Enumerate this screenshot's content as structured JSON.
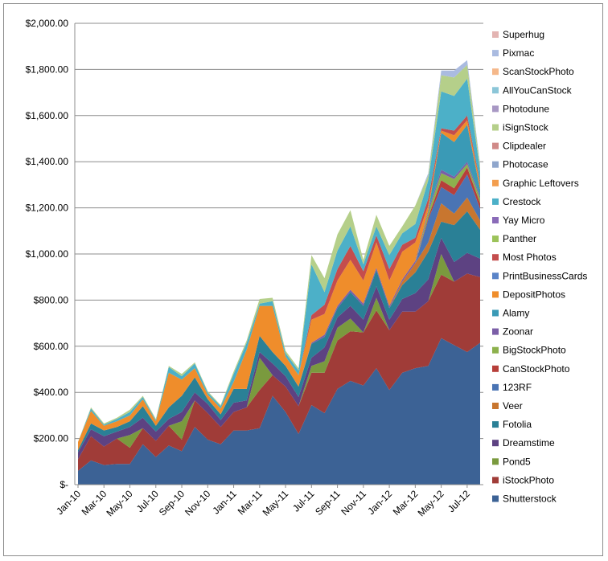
{
  "chart_data": {
    "type": "area",
    "stacked": true,
    "x": [
      "Jan-10",
      "Feb-10",
      "Mar-10",
      "Apr-10",
      "May-10",
      "Jun-10",
      "Jul-10",
      "Aug-10",
      "Sep-10",
      "Oct-10",
      "Nov-10",
      "Dec-10",
      "Jan-11",
      "Feb-11",
      "Mar-11",
      "Apr-11",
      "May-11",
      "Jun-11",
      "Jul-11",
      "Aug-11",
      "Sep-11",
      "Oct-11",
      "Nov-11",
      "Dec-11",
      "Jan-12",
      "Feb-12",
      "Mar-12",
      "Apr-12",
      "May-12",
      "Jun-12",
      "Jul-12",
      "Aug-12"
    ],
    "xtick_labels": [
      "Jan-10",
      "Mar-10",
      "May-10",
      "Jul-10",
      "Sep-10",
      "Nov-10",
      "Jan-11",
      "Mar-11",
      "May-11",
      "Jul-11",
      "Sep-11",
      "Nov-11",
      "Jan-12",
      "Mar-12",
      "May-12",
      "Jul-12"
    ],
    "ytick_labels": [
      "$-",
      "$200.00",
      "$400.00",
      "$600.00",
      "$800.00",
      "$1,000.00",
      "$1,200.00",
      "$1,400.00",
      "$1,600.00",
      "$1,800.00",
      "$2,000.00"
    ],
    "ylim": [
      0,
      2000
    ],
    "grid": "horizontal",
    "legend_position": "right",
    "series": [
      {
        "name": "Shutterstock",
        "color": "#3c6295",
        "values": [
          60,
          105,
          85,
          90,
          90,
          175,
          120,
          170,
          145,
          250,
          195,
          175,
          235,
          235,
          245,
          385,
          315,
          220,
          345,
          310,
          415,
          450,
          430,
          505,
          410,
          485,
          505,
          515,
          635,
          605,
          575,
          615
        ]
      },
      {
        "name": "iStockPhoto",
        "color": "#a03c38",
        "values": [
          50,
          105,
          80,
          110,
          70,
          70,
          70,
          85,
          50,
          115,
          115,
          75,
          80,
          100,
          165,
          90,
          110,
          120,
          140,
          175,
          210,
          215,
          230,
          250,
          260,
          265,
          245,
          280,
          275,
          275,
          340,
          285
        ]
      },
      {
        "name": "Pond5",
        "color": "#7a9a3e",
        "values": [
          0,
          0,
          0,
          0,
          55,
          0,
          0,
          0,
          80,
          0,
          0,
          0,
          0,
          0,
          140,
          0,
          0,
          0,
          30,
          50,
          55,
          55,
          0,
          55,
          0,
          0,
          0,
          0,
          90,
          0,
          0,
          0
        ]
      },
      {
        "name": "Dreamstime",
        "color": "#5d4282",
        "values": [
          30,
          30,
          45,
          30,
          35,
          45,
          40,
          30,
          40,
          35,
          40,
          30,
          40,
          30,
          25,
          50,
          45,
          40,
          35,
          60,
          45,
          55,
          55,
          50,
          45,
          55,
          80,
          95,
          70,
          85,
          90,
          80
        ]
      },
      {
        "name": "Fotolia",
        "color": "#2a8096",
        "values": [
          10,
          25,
          25,
          20,
          25,
          50,
          25,
          50,
          70,
          65,
          20,
          25,
          60,
          50,
          70,
          50,
          45,
          45,
          60,
          45,
          40,
          60,
          60,
          70,
          50,
          60,
          90,
          120,
          70,
          160,
          180,
          125
        ]
      },
      {
        "name": "Veer",
        "color": "#c8762f",
        "values": [
          0,
          0,
          0,
          0,
          0,
          0,
          0,
          0,
          0,
          0,
          0,
          0,
          0,
          0,
          0,
          0,
          0,
          0,
          0,
          0,
          0,
          0,
          0,
          0,
          0,
          15,
          40,
          40,
          80,
          50,
          60,
          40
        ]
      },
      {
        "name": "123RF",
        "color": "#4a74b4",
        "values": [
          0,
          0,
          0,
          0,
          0,
          0,
          0,
          0,
          0,
          0,
          0,
          0,
          0,
          0,
          0,
          0,
          0,
          0,
          0,
          0,
          0,
          0,
          0,
          0,
          0,
          0,
          0,
          100,
          70,
          80,
          100,
          50
        ]
      },
      {
        "name": "CanStockPhoto",
        "color": "#b73f3a",
        "values": [
          0,
          0,
          0,
          0,
          0,
          0,
          0,
          0,
          0,
          0,
          0,
          0,
          0,
          0,
          0,
          0,
          0,
          0,
          0,
          0,
          0,
          0,
          0,
          0,
          0,
          0,
          0,
          10,
          30,
          30,
          30,
          25
        ]
      },
      {
        "name": "BigStockPhoto",
        "color": "#8db14d",
        "values": [
          0,
          0,
          0,
          0,
          0,
          0,
          0,
          0,
          0,
          0,
          0,
          0,
          0,
          0,
          0,
          0,
          0,
          0,
          0,
          0,
          0,
          0,
          0,
          0,
          0,
          0,
          0,
          20,
          30,
          40,
          15,
          20
        ]
      },
      {
        "name": "Zoonar",
        "color": "#7b5ea7",
        "values": [
          0,
          0,
          0,
          0,
          0,
          0,
          0,
          0,
          0,
          0,
          0,
          0,
          0,
          0,
          0,
          0,
          0,
          0,
          5,
          10,
          10,
          10,
          10,
          10,
          10,
          10,
          10,
          10,
          15,
          10,
          10,
          10
        ]
      },
      {
        "name": "Alamy",
        "color": "#3a9ab6",
        "values": [
          0,
          0,
          0,
          0,
          0,
          0,
          0,
          0,
          0,
          0,
          0,
          0,
          0,
          0,
          0,
          0,
          0,
          0,
          0,
          0,
          0,
          0,
          0,
          0,
          0,
          0,
          0,
          0,
          160,
          150,
          160,
          30
        ]
      },
      {
        "name": "DepositPhotos",
        "color": "#ef8d2b",
        "values": [
          35,
          55,
          20,
          25,
          25,
          30,
          20,
          150,
          70,
          40,
          20,
          25,
          30,
          170,
          130,
          200,
          40,
          50,
          100,
          90,
          110,
          130,
          100,
          110,
          110,
          120,
          80,
          20,
          10,
          30,
          20,
          20
        ]
      },
      {
        "name": "PrintBusinessCards",
        "color": "#5a84c8",
        "values": [
          0,
          0,
          0,
          0,
          0,
          0,
          0,
          0,
          0,
          0,
          0,
          0,
          0,
          0,
          0,
          0,
          0,
          0,
          0,
          0,
          0,
          0,
          0,
          0,
          0,
          0,
          0,
          0,
          0,
          0,
          0,
          0
        ]
      },
      {
        "name": "Most Photos",
        "color": "#c44d4d",
        "values": [
          0,
          0,
          0,
          0,
          0,
          0,
          0,
          0,
          0,
          0,
          0,
          0,
          0,
          0,
          0,
          0,
          0,
          0,
          20,
          40,
          50,
          60,
          40,
          30,
          50,
          30,
          20,
          30,
          10,
          20,
          20,
          10
        ]
      },
      {
        "name": "Panther",
        "color": "#9cc35a",
        "values": [
          0,
          0,
          0,
          0,
          0,
          0,
          0,
          0,
          0,
          0,
          0,
          0,
          0,
          0,
          0,
          0,
          0,
          0,
          0,
          0,
          0,
          0,
          0,
          0,
          0,
          0,
          0,
          0,
          0,
          0,
          0,
          0
        ]
      },
      {
        "name": "Yay Micro",
        "color": "#8a6bb8",
        "values": [
          0,
          0,
          0,
          0,
          0,
          0,
          0,
          0,
          0,
          0,
          0,
          0,
          0,
          0,
          0,
          0,
          0,
          0,
          0,
          0,
          0,
          0,
          0,
          0,
          0,
          0,
          0,
          0,
          0,
          0,
          0,
          0
        ]
      },
      {
        "name": "Crestock",
        "color": "#4cb0c8",
        "values": [
          0,
          10,
          5,
          10,
          15,
          10,
          5,
          25,
          15,
          20,
          10,
          10,
          35,
          30,
          10,
          20,
          15,
          20,
          220,
          55,
          80,
          85,
          30,
          40,
          60,
          50,
          60,
          80,
          160,
          150,
          160,
          50
        ]
      },
      {
        "name": "Graphic Leftovers",
        "color": "#f39e4e",
        "values": [
          0,
          0,
          0,
          0,
          0,
          0,
          0,
          0,
          0,
          0,
          0,
          0,
          0,
          0,
          0,
          0,
          0,
          0,
          0,
          0,
          0,
          0,
          0,
          0,
          0,
          0,
          0,
          0,
          0,
          0,
          0,
          0
        ]
      },
      {
        "name": "Photocase",
        "color": "#8fa6cc",
        "values": [
          0,
          0,
          0,
          0,
          0,
          0,
          0,
          0,
          0,
          0,
          0,
          0,
          0,
          0,
          0,
          0,
          0,
          0,
          0,
          0,
          0,
          0,
          0,
          0,
          0,
          0,
          0,
          0,
          0,
          0,
          0,
          0
        ]
      },
      {
        "name": "Clipdealer",
        "color": "#d08a88",
        "values": [
          0,
          0,
          0,
          0,
          0,
          0,
          0,
          0,
          0,
          0,
          0,
          0,
          0,
          0,
          0,
          0,
          0,
          0,
          0,
          0,
          0,
          0,
          0,
          0,
          0,
          0,
          0,
          0,
          0,
          0,
          0,
          0
        ]
      },
      {
        "name": "iSignStock",
        "color": "#b5cf8a",
        "values": [
          0,
          5,
          5,
          5,
          10,
          5,
          5,
          5,
          10,
          5,
          5,
          5,
          10,
          10,
          20,
          15,
          10,
          10,
          40,
          60,
          70,
          70,
          20,
          50,
          40,
          30,
          80,
          20,
          70,
          80,
          60,
          20
        ]
      },
      {
        "name": "Photodune",
        "color": "#a898c4",
        "values": [
          0,
          0,
          0,
          0,
          0,
          0,
          0,
          0,
          0,
          0,
          0,
          0,
          0,
          0,
          0,
          0,
          0,
          0,
          0,
          0,
          0,
          0,
          0,
          0,
          0,
          0,
          0,
          0,
          0,
          0,
          0,
          0
        ]
      },
      {
        "name": "AllYouCanStock",
        "color": "#8cc6d8",
        "values": [
          0,
          0,
          0,
          0,
          0,
          0,
          0,
          0,
          0,
          0,
          0,
          0,
          0,
          0,
          0,
          0,
          0,
          0,
          0,
          0,
          0,
          0,
          0,
          0,
          0,
          0,
          0,
          0,
          0,
          0,
          0,
          0
        ]
      },
      {
        "name": "ScanStockPhoto",
        "color": "#f5b88a",
        "values": [
          0,
          0,
          0,
          0,
          0,
          0,
          0,
          0,
          0,
          0,
          0,
          0,
          0,
          0,
          0,
          0,
          0,
          0,
          0,
          0,
          0,
          0,
          0,
          0,
          0,
          0,
          0,
          0,
          0,
          0,
          0,
          0
        ]
      },
      {
        "name": "Pixmac",
        "color": "#aabbe0",
        "values": [
          0,
          0,
          0,
          0,
          0,
          0,
          0,
          0,
          0,
          0,
          0,
          0,
          0,
          0,
          0,
          0,
          0,
          0,
          0,
          0,
          0,
          0,
          0,
          0,
          0,
          0,
          0,
          10,
          20,
          30,
          20,
          10
        ]
      },
      {
        "name": "Superhug",
        "color": "#e3b4b2",
        "values": [
          0,
          0,
          0,
          0,
          0,
          0,
          0,
          0,
          0,
          0,
          0,
          0,
          0,
          0,
          0,
          0,
          0,
          0,
          0,
          0,
          0,
          0,
          0,
          0,
          0,
          0,
          0,
          0,
          0,
          0,
          0,
          0
        ]
      }
    ]
  }
}
